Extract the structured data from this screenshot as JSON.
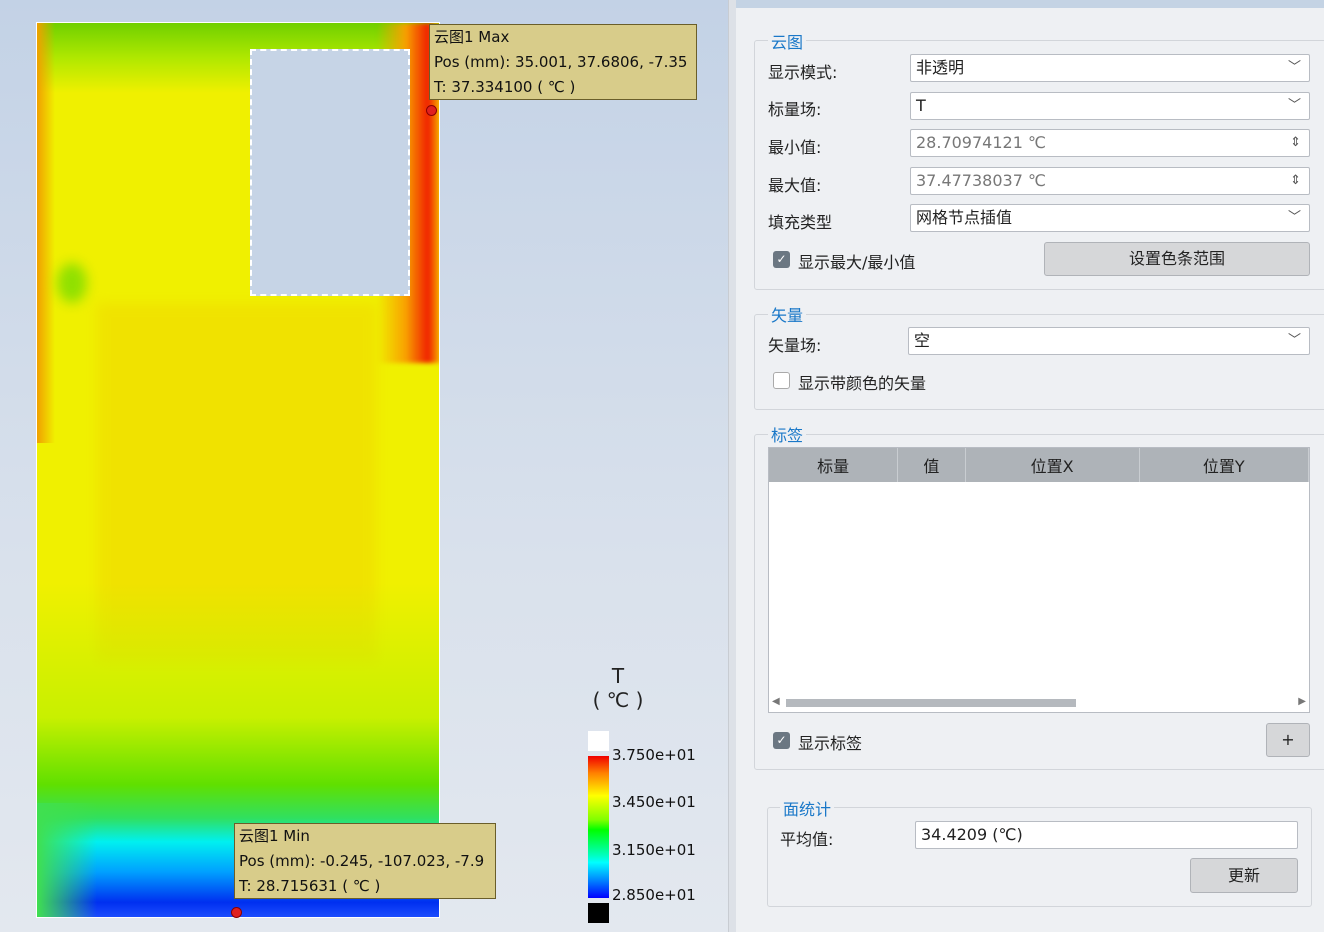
{
  "plot": {
    "max_callout": {
      "title": "云图1 Max",
      "pos": "Pos (mm): 35.001, 37.6806, -7.35",
      "temp": "T: 37.334100 ( ℃ )"
    },
    "min_callout": {
      "title": "云图1 Min",
      "pos": "Pos (mm): -0.245, -107.023, -7.9",
      "temp": "T: 28.715631 ( ℃ )"
    },
    "legend": {
      "var": "T",
      "unit": "( ℃ )",
      "ticks": [
        "3.750e+01",
        "3.450e+01",
        "3.150e+01",
        "2.850e+01"
      ],
      "colormap": "rainbow (blue-cyan-green-yellow-red)",
      "over_color": "#ffffff",
      "under_color": "#000000"
    }
  },
  "contour": {
    "title": "云图",
    "display_mode_label": "显示模式:",
    "display_mode": "非透明",
    "scalar_label": "标量场:",
    "scalar": "T",
    "min_label": "最小值:",
    "min": "28.70974121 ℃",
    "max_label": "最大值:",
    "max": "37.47738037 ℃",
    "fill_label": "填充类型",
    "fill": "网格节点插值",
    "show_minmax": "显示最大/最小值",
    "show_minmax_checked": true,
    "range_button": "设置色条范围"
  },
  "vector": {
    "title": "矢量",
    "field_label": "矢量场:",
    "field": "空",
    "show_colored": "显示带颜色的矢量",
    "show_colored_checked": false
  },
  "labels": {
    "title": "标签",
    "columns": [
      "标量",
      "值",
      "位置X",
      "位置Y"
    ],
    "rows": [],
    "show_labels": "显示标签",
    "show_labels_checked": true,
    "add_button": "+"
  },
  "stats": {
    "title": "面统计",
    "avg_label": "平均值:",
    "avg": "34.4209 (℃)",
    "update_button": "更新"
  }
}
